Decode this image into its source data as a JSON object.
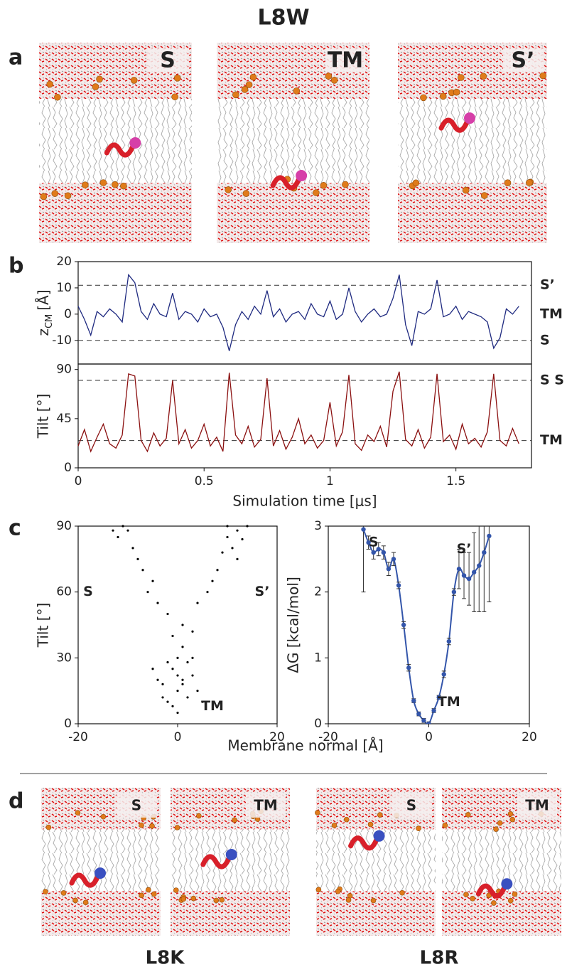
{
  "title": "L8W",
  "panel_letters": [
    "a",
    "b",
    "c",
    "d"
  ],
  "panel_a": {
    "labels": [
      "S",
      "TM",
      "S’"
    ],
    "label_colors": [
      "#e8262b",
      "#1a7a3a",
      "#c8102e"
    ]
  },
  "panel_c_xlabel": "Membrane normal [Å]",
  "panel_d": {
    "labels": [
      "S",
      "TM",
      "S",
      "TM"
    ],
    "label_colors": [
      "#e8262b",
      "#1a7a3a",
      "#e8262b",
      "#1a7a3a"
    ],
    "groups": [
      "L8K",
      "L8R"
    ]
  },
  "chart_data": [
    {
      "type": "line",
      "ylabel": "z",
      "ylabel_sub": "CM",
      "ylabel_unit": "[Å]",
      "x": [
        0,
        0.025,
        0.05,
        0.075,
        0.1,
        0.125,
        0.15,
        0.175,
        0.2,
        0.225,
        0.25,
        0.275,
        0.3,
        0.325,
        0.35,
        0.375,
        0.4,
        0.425,
        0.45,
        0.475,
        0.5,
        0.525,
        0.55,
        0.575,
        0.6,
        0.625,
        0.65,
        0.675,
        0.7,
        0.725,
        0.75,
        0.775,
        0.8,
        0.825,
        0.85,
        0.875,
        0.9,
        0.925,
        0.95,
        0.975,
        1,
        1.025,
        1.05,
        1.075,
        1.1,
        1.125,
        1.15,
        1.175,
        1.2,
        1.225,
        1.25,
        1.275,
        1.3,
        1.325,
        1.35,
        1.375,
        1.4,
        1.425,
        1.45,
        1.475,
        1.5,
        1.525,
        1.55,
        1.575,
        1.6,
        1.625,
        1.65,
        1.675,
        1.7,
        1.725,
        1.75
      ],
      "series": [
        {
          "color": "#1f2a80",
          "values": [
            3,
            -2,
            -8,
            1,
            -1,
            2,
            0,
            -3,
            15,
            12,
            1,
            -2,
            4,
            0,
            -1,
            8,
            -2,
            1,
            0,
            -3,
            2,
            -1,
            0,
            -5,
            -14,
            -4,
            1,
            -2,
            3,
            0,
            9,
            -1,
            2,
            -3,
            0,
            1,
            -2,
            4,
            0,
            -1,
            5,
            -2,
            0,
            10,
            1,
            -3,
            0,
            2,
            -1,
            0,
            6,
            15,
            -4,
            -12,
            1,
            0,
            2,
            13,
            -1,
            0,
            3,
            -2,
            1,
            0,
            -1,
            -3,
            -13,
            -9,
            2,
            0,
            3
          ]
        }
      ],
      "xlim": [
        0,
        1.8
      ],
      "ylim": [
        -19,
        20
      ],
      "yticks": [
        -10,
        0,
        10,
        20
      ],
      "reference_lines": [
        {
          "value": 11,
          "label": "S’",
          "color": "#c8102e",
          "dashed": true
        },
        {
          "value": 0,
          "label": "TM",
          "color": "#1a7a3a",
          "dashed": false
        },
        {
          "value": -10,
          "label": "S",
          "color": "#e8262b",
          "dashed": true
        }
      ]
    },
    {
      "type": "line",
      "ylabel": "Tilt [°]",
      "xlabel": "Simulation time [μs]",
      "x": [
        0,
        0.025,
        0.05,
        0.075,
        0.1,
        0.125,
        0.15,
        0.175,
        0.2,
        0.225,
        0.25,
        0.275,
        0.3,
        0.325,
        0.35,
        0.375,
        0.4,
        0.425,
        0.45,
        0.475,
        0.5,
        0.525,
        0.55,
        0.575,
        0.6,
        0.625,
        0.65,
        0.675,
        0.7,
        0.725,
        0.75,
        0.775,
        0.8,
        0.825,
        0.85,
        0.875,
        0.9,
        0.925,
        0.95,
        0.975,
        1,
        1.025,
        1.05,
        1.075,
        1.1,
        1.125,
        1.15,
        1.175,
        1.2,
        1.225,
        1.25,
        1.275,
        1.3,
        1.325,
        1.35,
        1.375,
        1.4,
        1.425,
        1.45,
        1.475,
        1.5,
        1.525,
        1.55,
        1.575,
        1.6,
        1.625,
        1.65,
        1.675,
        1.7,
        1.725,
        1.75
      ],
      "series": [
        {
          "color": "#8b1010",
          "values": [
            20,
            35,
            15,
            28,
            40,
            22,
            18,
            30,
            86,
            84,
            25,
            15,
            32,
            20,
            27,
            80,
            22,
            35,
            18,
            25,
            40,
            20,
            28,
            15,
            87,
            30,
            22,
            38,
            19,
            26,
            82,
            20,
            34,
            17,
            28,
            45,
            22,
            30,
            18,
            25,
            60,
            20,
            33,
            85,
            22,
            16,
            30,
            24,
            38,
            19,
            70,
            88,
            26,
            20,
            35,
            18,
            28,
            86,
            24,
            30,
            17,
            40,
            22,
            27,
            19,
            33,
            86,
            25,
            20,
            36,
            22
          ]
        }
      ],
      "xlim": [
        0,
        1.8
      ],
      "ylim": [
        0,
        95
      ],
      "xticks": [
        0,
        0.5,
        1,
        1.5
      ],
      "yticks": [
        0,
        45,
        90
      ],
      "reference_lines": [
        {
          "value": 80,
          "label": "S S",
          "color": "#e8262b",
          "dashed": true
        },
        {
          "value": 25,
          "label": "TM",
          "color": "#1a7a3a",
          "dashed": true
        }
      ]
    },
    {
      "type": "scatter",
      "ylabel": "Tilt [°]",
      "x": [
        -2,
        0,
        1,
        -1,
        2,
        -3,
        0,
        3,
        -1,
        1,
        -2,
        4,
        -4,
        0,
        2,
        -1,
        1,
        0,
        3,
        -3,
        5,
        -5,
        1,
        -2,
        3,
        -4,
        -6,
        -7,
        -9,
        -10,
        -12,
        -8,
        -11,
        -5,
        -13,
        4,
        6,
        8,
        9,
        10,
        12,
        11,
        13,
        7,
        14,
        10,
        12
      ],
      "values": [
        10,
        15,
        20,
        25,
        12,
        18,
        30,
        22,
        8,
        35,
        28,
        15,
        20,
        5,
        28,
        40,
        18,
        22,
        30,
        12,
        10,
        25,
        45,
        50,
        42,
        55,
        60,
        70,
        80,
        88,
        85,
        75,
        90,
        65,
        88,
        55,
        60,
        70,
        78,
        85,
        88,
        80,
        84,
        65,
        90,
        90,
        75
      ],
      "color": "#000000",
      "xlim": [
        -20,
        20
      ],
      "ylim": [
        0,
        90
      ],
      "xticks": [
        -20,
        0,
        20
      ],
      "yticks": [
        0,
        30,
        60,
        90
      ],
      "annotations": [
        {
          "text": "S",
          "color": "#e8262b"
        },
        {
          "text": "S’",
          "color": "#c8102e"
        },
        {
          "text": "TM",
          "color": "#1a7a3a"
        }
      ]
    },
    {
      "type": "errorbar",
      "ylabel": "ΔG [kcal/mol]",
      "x": [
        -13,
        -12,
        -11,
        -10,
        -9,
        -8,
        -7,
        -6,
        -5,
        -4,
        -3,
        -2,
        -1,
        0,
        1,
        2,
        3,
        4,
        5,
        6,
        7,
        8,
        9,
        10,
        11,
        12
      ],
      "values": [
        2.95,
        2.75,
        2.6,
        2.65,
        2.6,
        2.35,
        2.5,
        2.1,
        1.5,
        0.85,
        0.35,
        0.15,
        0.05,
        0,
        0.2,
        0.4,
        0.75,
        1.25,
        2,
        2.35,
        2.25,
        2.2,
        2.3,
        2.4,
        2.6,
        2.85
      ],
      "errors": [
        0.95,
        0.1,
        0.1,
        0.1,
        0.1,
        0.1,
        0.1,
        0.05,
        0.05,
        0.05,
        0.03,
        0.03,
        0.03,
        0.03,
        0.03,
        0.03,
        0.05,
        0.05,
        0.05,
        0.3,
        0.35,
        0.4,
        0.6,
        0.7,
        0.9,
        1
      ],
      "color": "#3355aa",
      "xlim": [
        -20,
        20
      ],
      "ylim": [
        0,
        3
      ],
      "xticks": [
        -20,
        0,
        20
      ],
      "yticks": [
        0,
        1,
        2,
        3
      ],
      "annotations": [
        {
          "text": "S",
          "color": "#e8262b"
        },
        {
          "text": "S’",
          "color": "#c8102e"
        },
        {
          "text": "TM",
          "color": "#1a7a3a"
        }
      ]
    }
  ]
}
